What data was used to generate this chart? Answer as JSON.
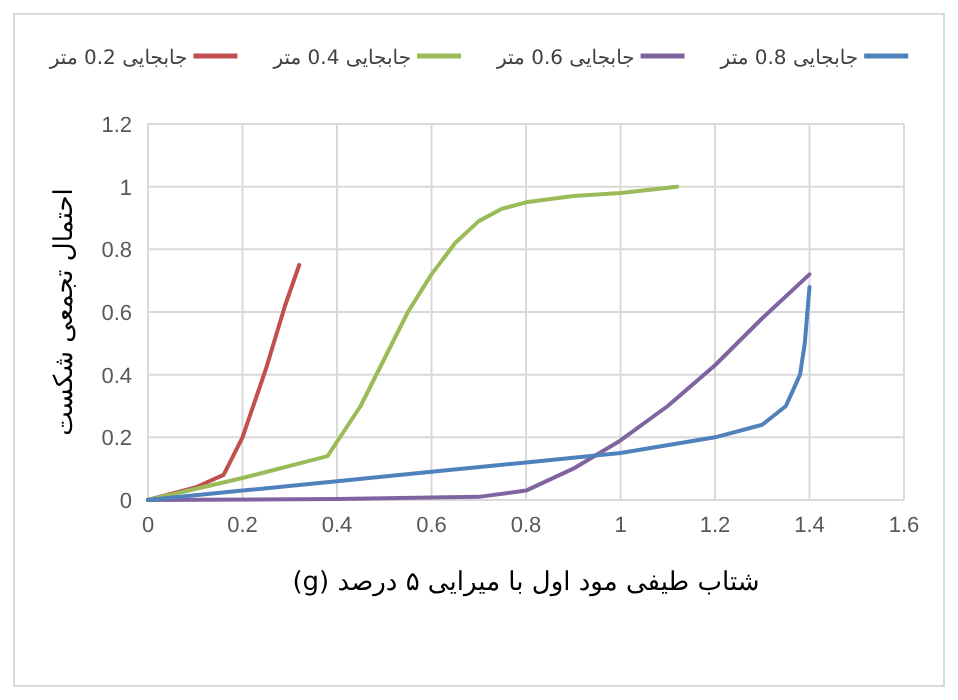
{
  "chart_data": {
    "type": "line",
    "xlabel": "شتاب طیفی مود اول با میرایی ۵ درصد (g)",
    "ylabel": "احتمال تجمعی شکست",
    "xlim": [
      0,
      1.6
    ],
    "xticks": [
      0,
      0.2,
      0.4,
      0.6,
      0.8,
      1,
      1.2,
      1.4,
      1.6
    ],
    "ylim": [
      0,
      1.2
    ],
    "yticks": [
      0,
      0.2,
      0.4,
      0.6,
      0.8,
      1,
      1.2
    ],
    "grid": true,
    "legend": "top",
    "series": [
      {
        "name": "جابجایی 0.2 متر",
        "color": "#c0504d",
        "x": [
          0,
          0.1,
          0.16,
          0.2,
          0.25,
          0.29,
          0.32
        ],
        "values": [
          0,
          0.04,
          0.08,
          0.2,
          0.42,
          0.62,
          0.75
        ]
      },
      {
        "name": "جابجایی 0.4 متر",
        "color": "#9bbb59",
        "x": [
          0,
          0.2,
          0.38,
          0.45,
          0.5,
          0.55,
          0.6,
          0.65,
          0.7,
          0.75,
          0.8,
          0.9,
          1.0,
          1.12
        ],
        "values": [
          0,
          0.07,
          0.14,
          0.3,
          0.45,
          0.6,
          0.72,
          0.82,
          0.89,
          0.93,
          0.95,
          0.97,
          0.98,
          1.0
        ]
      },
      {
        "name": "جابجایی 0.6 متر",
        "color": "#8064a2",
        "x": [
          0,
          0.4,
          0.7,
          0.8,
          0.9,
          1.0,
          1.1,
          1.2,
          1.3,
          1.4
        ],
        "values": [
          0,
          0.003,
          0.01,
          0.03,
          0.1,
          0.19,
          0.3,
          0.43,
          0.58,
          0.72
        ]
      },
      {
        "name": "جابجایی 0.8 متر",
        "color": "#4f81bd",
        "x": [
          0,
          0.2,
          0.4,
          0.6,
          0.8,
          1.0,
          1.2,
          1.3,
          1.35,
          1.38,
          1.39,
          1.4
        ],
        "values": [
          0,
          0.03,
          0.06,
          0.09,
          0.12,
          0.15,
          0.2,
          0.24,
          0.3,
          0.4,
          0.5,
          0.68
        ]
      }
    ]
  }
}
